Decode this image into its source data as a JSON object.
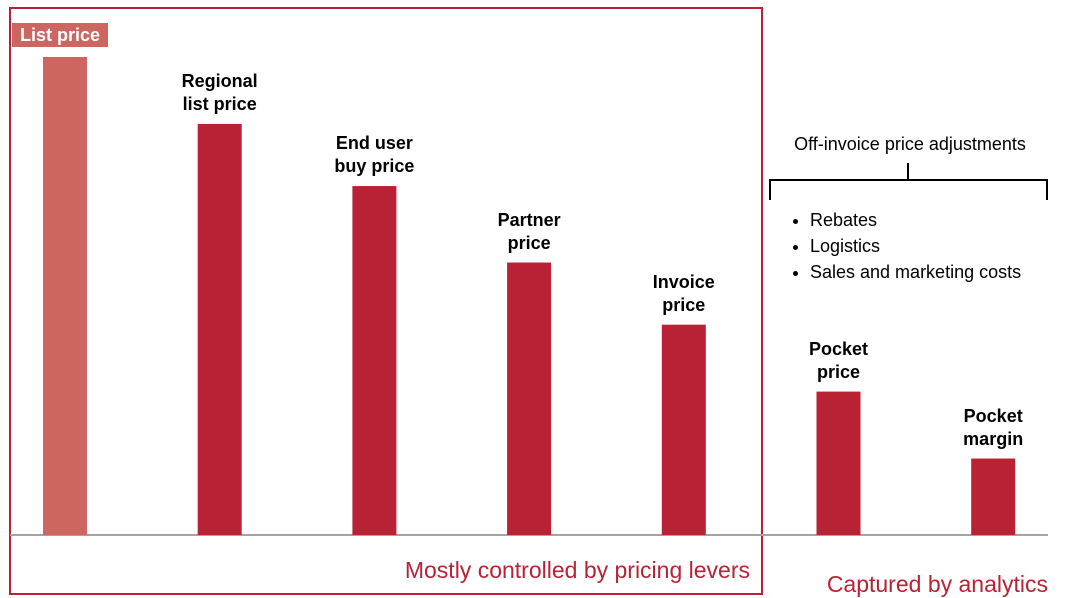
{
  "chart_data": {
    "type": "bar",
    "categories": [
      "List price",
      "Regional list price",
      "End user buy price",
      "Partner price",
      "Invoice price",
      "Pocket price",
      "Pocket margin"
    ],
    "values": [
      100,
      86,
      73,
      57,
      44,
      30,
      16
    ],
    "colors": [
      "#cd6660",
      "#b82234",
      "#b82234",
      "#b82234",
      "#b82234",
      "#b82234",
      "#b82234"
    ],
    "ylim": [
      0,
      100
    ],
    "bracket": {
      "label": "Off-invoice price adjustments",
      "items": [
        "Rebates",
        "Logistics",
        "Sales and marketing costs"
      ]
    },
    "groups": [
      "Mostly controlled by pricing levers",
      "Captured by analytics"
    ]
  }
}
